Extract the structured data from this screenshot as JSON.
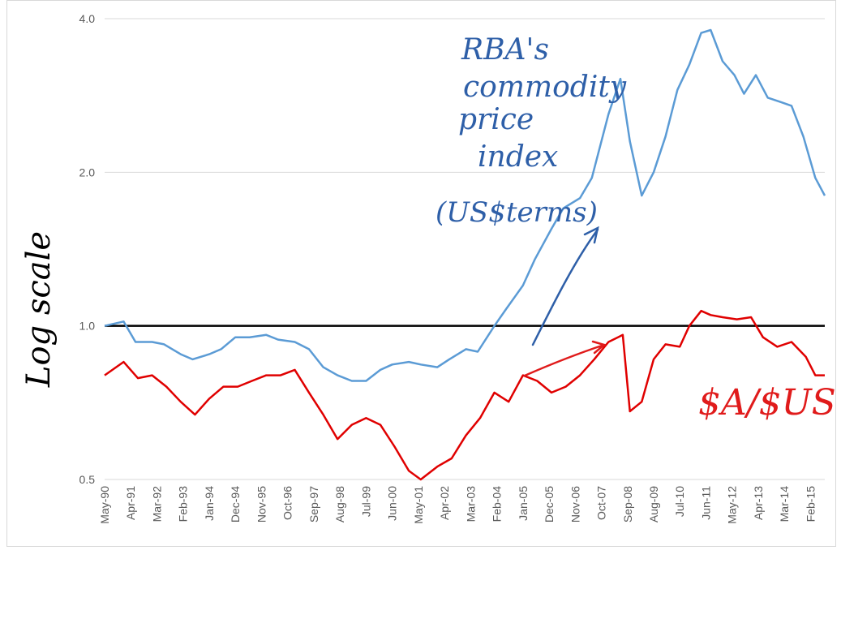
{
  "chart_data": {
    "type": "line",
    "y_scale": "log",
    "ylim": [
      0.5,
      4.0
    ],
    "ytick_labels": [
      "0.5",
      "1.0",
      "2.0",
      "4.0"
    ],
    "ytick_values": [
      0.5,
      1.0,
      2.0,
      4.0
    ],
    "xtick_labels": [
      "May-90",
      "Apr-91",
      "Mar-92",
      "Feb-93",
      "Jan-94",
      "Dec-94",
      "Nov-95",
      "Oct-96",
      "Sep-97",
      "Aug-98",
      "Jul-99",
      "Jun-00",
      "May-01",
      "Apr-02",
      "Mar-03",
      "Feb-04",
      "Jan-05",
      "Dec-05",
      "Nov-06",
      "Oct-07",
      "Sep-08",
      "Aug-09",
      "Jul-10",
      "Jun-11",
      "May-12",
      "Apr-13",
      "Mar-14",
      "Feb-15"
    ],
    "ylabel": "Log scale",
    "reference_line": 1.0,
    "grid": "horizontal",
    "series": [
      {
        "name": "RBA's commodity price index (US$ terms)",
        "color": "#5b9bd5",
        "x": [
          "May-90",
          "Jan-91",
          "Jun-91",
          "Jan-92",
          "Jun-92",
          "Jan-93",
          "Jun-93",
          "Jan-94",
          "Jun-94",
          "Dec-94",
          "Jun-95",
          "Jan-96",
          "Jun-96",
          "Jan-97",
          "Jul-97",
          "Jan-98",
          "Jul-98",
          "Jan-99",
          "Jul-99",
          "Jan-00",
          "Jun-00",
          "Jan-01",
          "Jun-01",
          "Jan-02",
          "Jun-02",
          "Jan-03",
          "Jun-03",
          "Jan-04",
          "Jun-04",
          "Jan-05",
          "Jun-05",
          "Jan-06",
          "Jun-06",
          "Jan-07",
          "Jun-07",
          "Jan-08",
          "Jun-08",
          "Oct-08",
          "Mar-09",
          "Aug-09",
          "Jan-10",
          "Jun-10",
          "Nov-10",
          "Apr-11",
          "Aug-11",
          "Jan-12",
          "Jun-12",
          "Oct-12",
          "Mar-13",
          "Aug-13",
          "Jan-14",
          "Jun-14",
          "Nov-14",
          "Apr-15",
          "Aug-15"
        ],
        "values": [
          1.0,
          1.02,
          0.93,
          0.93,
          0.92,
          0.88,
          0.86,
          0.88,
          0.9,
          0.95,
          0.95,
          0.96,
          0.94,
          0.93,
          0.9,
          0.83,
          0.8,
          0.78,
          0.78,
          0.82,
          0.84,
          0.85,
          0.84,
          0.83,
          0.86,
          0.9,
          0.89,
          1.0,
          1.08,
          1.2,
          1.35,
          1.55,
          1.7,
          1.78,
          1.95,
          2.6,
          3.05,
          2.3,
          1.8,
          2.0,
          2.35,
          2.9,
          3.25,
          3.75,
          3.8,
          3.3,
          3.1,
          2.85,
          3.1,
          2.8,
          2.75,
          2.7,
          2.35,
          1.95,
          1.8
        ]
      },
      {
        "name": "$A/$US",
        "color": "#e00000",
        "x": [
          "May-90",
          "Jan-91",
          "Jul-91",
          "Jan-92",
          "Jul-92",
          "Jan-93",
          "Jul-93",
          "Jan-94",
          "Jul-94",
          "Jan-95",
          "Jul-95",
          "Jan-96",
          "Jul-96",
          "Jan-97",
          "Jul-97",
          "Jan-98",
          "Jul-98",
          "Jan-99",
          "Jul-99",
          "Jan-00",
          "Jul-00",
          "Jan-01",
          "Jun-01",
          "Jan-02",
          "Jul-02",
          "Jan-03",
          "Jul-03",
          "Jan-04",
          "Jul-04",
          "Jan-05",
          "Jul-05",
          "Jan-06",
          "Jul-06",
          "Jan-07",
          "Jul-07",
          "Jan-08",
          "Jul-08",
          "Oct-08",
          "Mar-09",
          "Aug-09",
          "Jan-10",
          "Jul-10",
          "Nov-10",
          "Apr-11",
          "Aug-11",
          "Jan-12",
          "Jul-12",
          "Jan-13",
          "Jun-13",
          "Dec-13",
          "Jun-14",
          "Dec-14",
          "Apr-15",
          "Aug-15"
        ],
        "values": [
          0.8,
          0.85,
          0.79,
          0.8,
          0.76,
          0.71,
          0.67,
          0.72,
          0.76,
          0.76,
          0.78,
          0.8,
          0.8,
          0.82,
          0.74,
          0.67,
          0.6,
          0.64,
          0.66,
          0.64,
          0.58,
          0.52,
          0.5,
          0.53,
          0.55,
          0.61,
          0.66,
          0.74,
          0.71,
          0.8,
          0.78,
          0.74,
          0.76,
          0.8,
          0.86,
          0.93,
          0.96,
          0.68,
          0.71,
          0.86,
          0.92,
          0.91,
          1.0,
          1.07,
          1.05,
          1.04,
          1.03,
          1.04,
          0.95,
          0.91,
          0.93,
          0.87,
          0.8,
          0.8
        ]
      }
    ],
    "annotations": [
      {
        "name": "commodity-label",
        "lines": [
          "RBA's",
          "commodity",
          "price",
          "index",
          "(US$terms)"
        ]
      },
      {
        "name": "aud-label",
        "text": "$A/$US"
      }
    ]
  }
}
